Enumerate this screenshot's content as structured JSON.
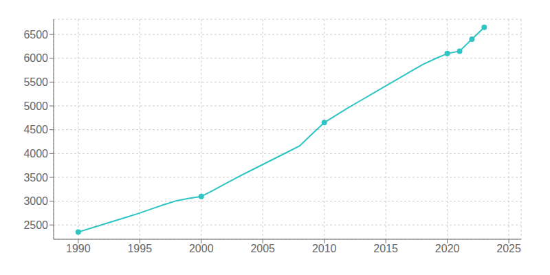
{
  "chart_data": {
    "type": "line",
    "x": [
      1990,
      1991,
      1992,
      1993,
      1994,
      1995,
      1996,
      1997,
      1998,
      1999,
      2000,
      2001,
      2002,
      2003,
      2004,
      2005,
      2006,
      2007,
      2008,
      2009,
      2010,
      2011,
      2012,
      2013,
      2014,
      2015,
      2016,
      2017,
      2018,
      2019,
      2020,
      2021,
      2022,
      2023
    ],
    "series": [
      {
        "type": "line",
        "color": "#2ec4c4",
        "values": [
          2350,
          2430,
          2510,
          2590,
          2670,
          2750,
          2840,
          2930,
          3010,
          3060,
          3100,
          3230,
          3370,
          3510,
          3640,
          3770,
          3900,
          4030,
          4160,
          4410,
          4650,
          4810,
          4970,
          5120,
          5270,
          5420,
          5570,
          5720,
          5870,
          5990,
          6100,
          6150,
          6400,
          6650
        ]
      },
      {
        "type": "scatter",
        "marker": "circle",
        "color": "#2ec4c4",
        "x": [
          1990,
          2000,
          2010,
          2020,
          2021,
          2022,
          2023
        ],
        "values": [
          2350,
          3100,
          4650,
          6100,
          6150,
          6400,
          6650
        ]
      }
    ],
    "xlim": [
      1988,
      2026
    ],
    "xticks": [
      1990,
      1995,
      2000,
      2005,
      2010,
      2015,
      2020,
      2025
    ],
    "ylim": [
      2200,
      6820
    ],
    "yticks": [
      2500,
      3000,
      3500,
      4000,
      4500,
      5000,
      5500,
      6000,
      6500
    ],
    "grid": true
  }
}
